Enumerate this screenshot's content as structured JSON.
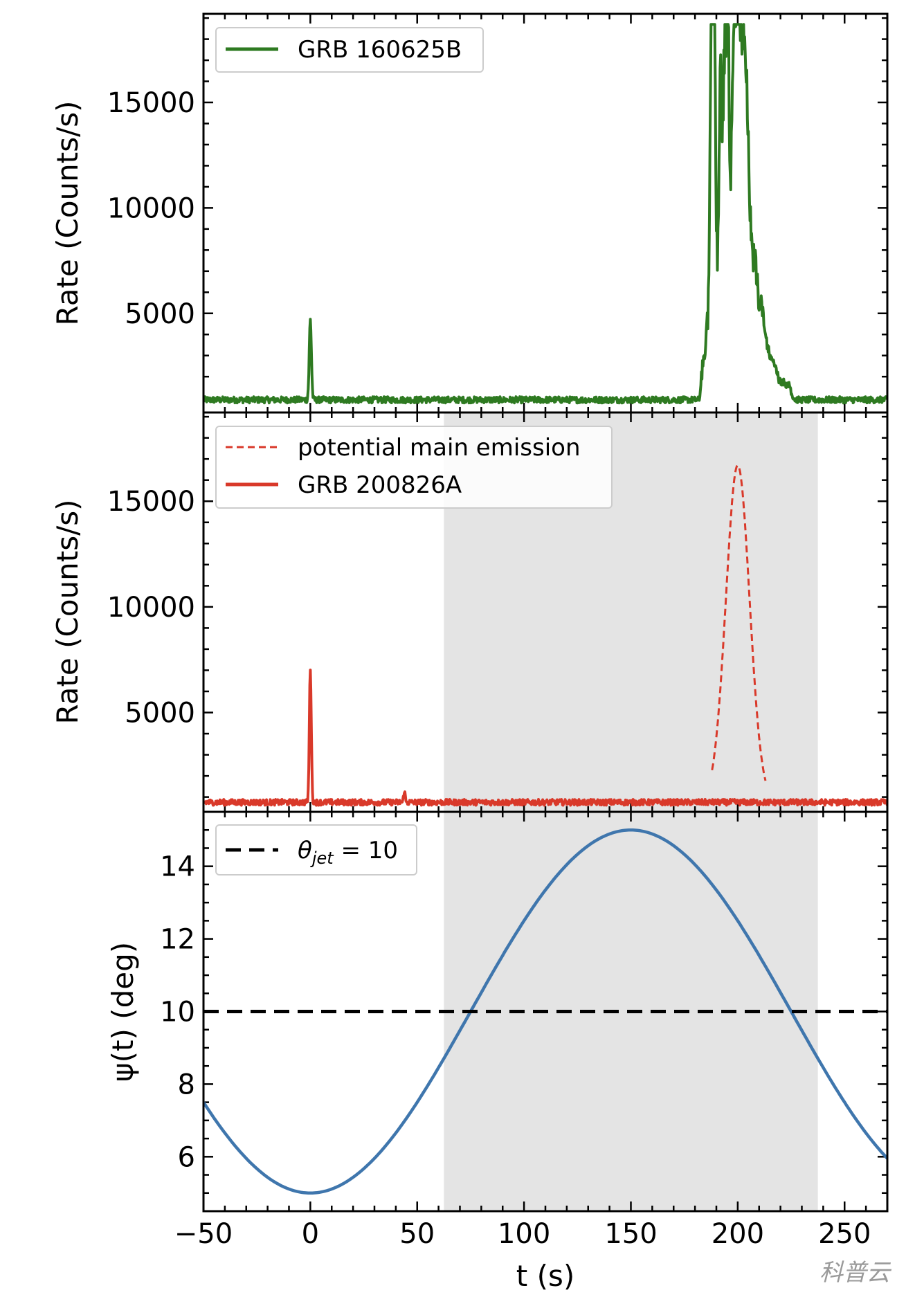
{
  "chart_data": [
    {
      "type": "line",
      "panel": "top",
      "ylabel": "Rate (Counts/s)",
      "xlim": [
        -50,
        270
      ],
      "ylim": [
        300,
        19200
      ],
      "yticks": [
        5000,
        10000,
        15000
      ],
      "ytick_labels": [
        "5000",
        "10000",
        "15000"
      ],
      "legend": {
        "placement": "top-left",
        "entries": [
          {
            "label": "GRB 160625B",
            "style": "solid",
            "color": "#2e7a21"
          }
        ]
      },
      "series": [
        {
          "name": "GRB 160625B",
          "color": "#2e7a21",
          "style": "solid",
          "background": 900,
          "noise": 150,
          "features": [
            {
              "t": 0,
              "peak": 4700,
              "width": 0.5
            },
            {
              "t": 188,
              "peak": 18600,
              "width": 0.7
            },
            {
              "t": 188.8,
              "peak": 14500,
              "width": 0.6
            },
            {
              "t": 192,
              "peak": 10400,
              "width": 0.7
            },
            {
              "t": 194,
              "peak": 12100,
              "width": 0.7
            },
            {
              "t": 195.5,
              "peak": 12600,
              "width": 0.6
            },
            {
              "t": 197.5,
              "peak": 9300,
              "width": 0.6
            },
            {
              "t": 199,
              "peak": 12400,
              "width": 0.8
            },
            {
              "t": 200.5,
              "peak": 13000,
              "width": 0.6
            },
            {
              "t": 202,
              "peak": 10500,
              "width": 0.7
            },
            {
              "t": 203.5,
              "peak": 8800,
              "width": 0.8
            },
            {
              "t": 205,
              "peak": 7000,
              "width": 1.0
            },
            {
              "t": 208,
              "peak": 5000,
              "width": 1.2
            },
            {
              "t": 211,
              "peak": 3600,
              "width": 1.2
            },
            {
              "t": 213.5,
              "peak": 2400,
              "width": 1.2
            },
            {
              "t": 216,
              "peak": 1900,
              "width": 1.0
            },
            {
              "t": 218,
              "peak": 1700,
              "width": 1.0
            },
            {
              "t": 221,
              "peak": 1500,
              "width": 1.2
            },
            {
              "t": 224,
              "peak": 1400,
              "width": 1.2
            }
          ],
          "envelope": {
            "rise_start": 182,
            "plateau": [
              188,
              203
            ],
            "plateau_level": 5800,
            "decay_end": 225
          }
        }
      ]
    },
    {
      "type": "line",
      "panel": "middle",
      "ylabel": "Rate (Counts/s)",
      "xlim": [
        -50,
        270
      ],
      "ylim": [
        300,
        19200
      ],
      "yticks": [
        5000,
        10000,
        15000
      ],
      "ytick_labels": [
        "5000",
        "10000",
        "15000"
      ],
      "shaded_region": [
        62.5,
        237.5
      ],
      "legend": {
        "placement": "top-left",
        "entries": [
          {
            "label": "potential main emission",
            "style": "dashed",
            "color": "#d9392a"
          },
          {
            "label": "GRB 200826A",
            "style": "solid",
            "color": "#d9392a"
          }
        ]
      },
      "series": [
        {
          "name": "potential main emission",
          "color": "#d9392a",
          "style": "dashed",
          "gaussian": {
            "center": 200,
            "sigma": 5.5,
            "amplitude": 15900,
            "baseline": 800,
            "range": [
              188,
              213
            ]
          }
        },
        {
          "name": "GRB 200826A",
          "color": "#d9392a",
          "style": "solid",
          "background": 750,
          "noise": 140,
          "features": [
            {
              "t": 0,
              "peak": 7100,
              "width": 0.45
            },
            {
              "t": 44,
              "peak": 1300,
              "width": 0.35
            }
          ]
        }
      ]
    },
    {
      "type": "line",
      "panel": "bottom",
      "ylabel": "ψ(t) (deg)",
      "xlabel": "t (s)",
      "xlim": [
        -50,
        270
      ],
      "ylim": [
        4.5,
        15.5
      ],
      "yticks": [
        6,
        8,
        10,
        12,
        14
      ],
      "ytick_labels": [
        "6",
        "8",
        "10",
        "12",
        "14"
      ],
      "xticks": [
        -50,
        0,
        50,
        100,
        150,
        200,
        250
      ],
      "xtick_labels": [
        "−50",
        "0",
        "50",
        "100",
        "150",
        "200",
        "250"
      ],
      "shaded_region": [
        62.5,
        237.5
      ],
      "legend": {
        "placement": "top-left",
        "entries": [
          {
            "label": "θjet = 10",
            "symbol": "θ",
            "subscript": "jet",
            "value_text": " = 10",
            "style": "dashed",
            "color": "#000000"
          }
        ]
      },
      "series": [
        {
          "name": "ψ(t)",
          "color": "#3f76ad",
          "style": "solid",
          "function": "10 - 5*cos(2*pi*t/300)",
          "x_range": [
            -50,
            270
          ]
        },
        {
          "name": "θjet = 10",
          "color": "#000000",
          "style": "dashed",
          "y": 10
        }
      ]
    }
  ],
  "watermark": "科普云"
}
